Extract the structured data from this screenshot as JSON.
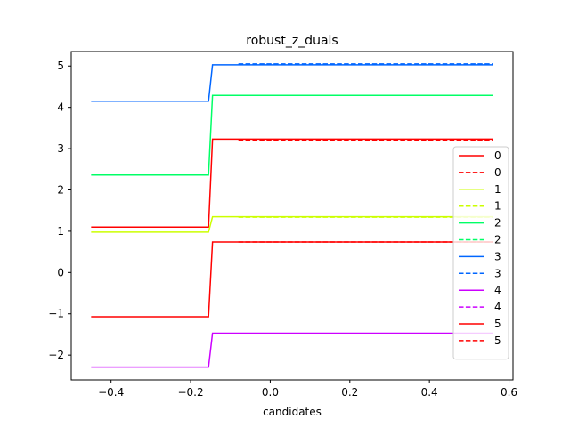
{
  "chart_data": {
    "type": "line",
    "title": "robust_z_duals",
    "xlabel": "candidates",
    "ylabel": "",
    "xlim": [
      -0.5,
      0.61
    ],
    "ylim": [
      -2.6,
      5.35
    ],
    "xticks": [
      -0.4,
      -0.2,
      0.0,
      0.2,
      0.4,
      0.6
    ],
    "xtick_labels": [
      "−0.4",
      "−0.2",
      "0.0",
      "0.2",
      "0.4",
      "0.6"
    ],
    "yticks": [
      -2,
      -1,
      0,
      1,
      2,
      3,
      4,
      5
    ],
    "ytick_labels": [
      "−2",
      "−1",
      "0",
      "1",
      "2",
      "3",
      "4",
      "5"
    ],
    "grid": false,
    "legend_position": "right",
    "series": [
      {
        "name": "0",
        "style": "solid",
        "color": "#ff0000",
        "x": [
          -0.45,
          -0.155,
          -0.145,
          0.56
        ],
        "y": [
          1.1,
          1.1,
          3.23,
          3.23
        ]
      },
      {
        "name": "0",
        "style": "dashed",
        "color": "#ff0000",
        "x": [
          -0.08,
          0.56
        ],
        "y": [
          3.21,
          3.21
        ]
      },
      {
        "name": "1",
        "style": "solid",
        "color": "#ccff00",
        "x": [
          -0.45,
          -0.155,
          -0.145,
          0.56
        ],
        "y": [
          0.98,
          0.98,
          1.35,
          1.35
        ]
      },
      {
        "name": "1",
        "style": "dashed",
        "color": "#ccff00",
        "x": [
          -0.08,
          0.56
        ],
        "y": [
          1.34,
          1.34
        ]
      },
      {
        "name": "2",
        "style": "solid",
        "color": "#00ff66",
        "x": [
          -0.45,
          -0.155,
          -0.145,
          0.56
        ],
        "y": [
          2.36,
          2.36,
          4.29,
          4.29
        ]
      },
      {
        "name": "2",
        "style": "dashed",
        "color": "#00ff66",
        "x": [
          -0.08,
          0.56
        ],
        "y": [
          4.29,
          4.29
        ]
      },
      {
        "name": "3",
        "style": "solid",
        "color": "#0066ff",
        "x": [
          -0.45,
          -0.155,
          -0.145,
          0.56
        ],
        "y": [
          4.15,
          4.15,
          5.03,
          5.03
        ]
      },
      {
        "name": "3",
        "style": "dashed",
        "color": "#0066ff",
        "x": [
          -0.08,
          0.56
        ],
        "y": [
          5.05,
          5.05
        ]
      },
      {
        "name": "4",
        "style": "solid",
        "color": "#cc00ff",
        "x": [
          -0.45,
          -0.155,
          -0.145,
          0.56
        ],
        "y": [
          -2.29,
          -2.29,
          -1.47,
          -1.47
        ]
      },
      {
        "name": "4",
        "style": "dashed",
        "color": "#cc00ff",
        "x": [
          -0.08,
          0.56
        ],
        "y": [
          -1.48,
          -1.48
        ]
      },
      {
        "name": "5",
        "style": "solid",
        "color": "#ff0000",
        "x": [
          -0.45,
          -0.155,
          -0.145,
          0.56
        ],
        "y": [
          -1.07,
          -1.07,
          0.74,
          0.74
        ]
      },
      {
        "name": "5",
        "style": "dashed",
        "color": "#ff0000",
        "x": [
          -0.08,
          0.56
        ],
        "y": [
          0.74,
          0.74
        ]
      }
    ]
  }
}
